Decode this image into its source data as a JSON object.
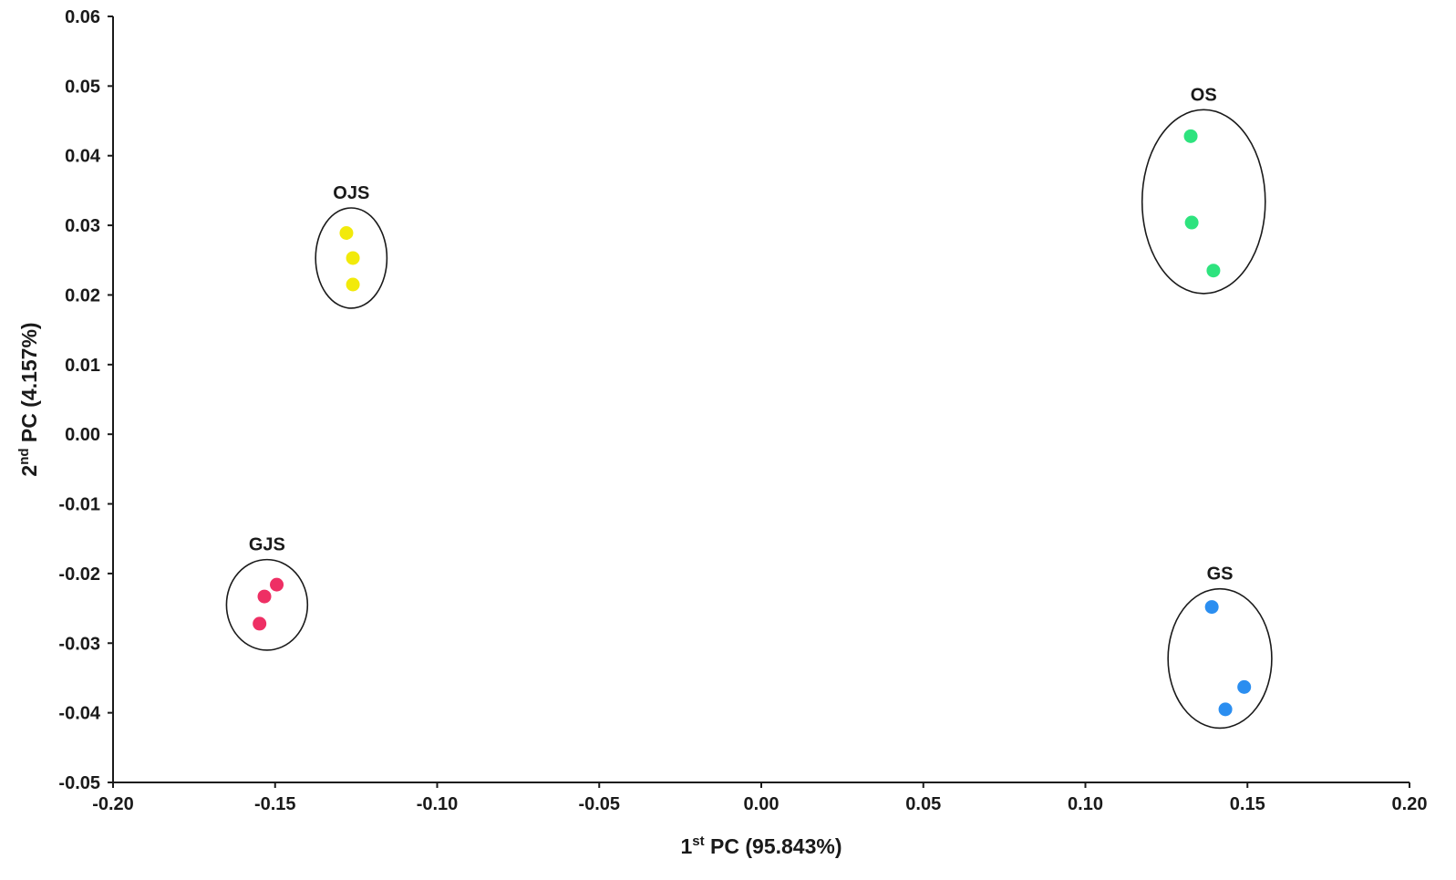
{
  "chart_data": {
    "type": "scatter",
    "title": "",
    "xlabel": {
      "prefix": "1",
      "sup": "st",
      "rest": " PC (95.843%)"
    },
    "ylabel": {
      "prefix": "2",
      "sup": "nd",
      "rest": " PC (4.157%)"
    },
    "xlim": [
      -0.2,
      0.2
    ],
    "ylim": [
      -0.05,
      0.06
    ],
    "xticks": [
      -0.2,
      -0.15,
      -0.1,
      -0.05,
      0.0,
      0.05,
      0.1,
      0.15,
      0.2
    ],
    "xtick_labels": [
      "-0.20",
      "-0.15",
      "-0.10",
      "-0.05",
      "0.00",
      "0.05",
      "0.10",
      "0.15",
      "0.20"
    ],
    "yticks": [
      0.06,
      0.05,
      0.04,
      0.03,
      0.02,
      0.01,
      0.0,
      -0.01,
      -0.02,
      -0.03,
      -0.04,
      -0.05
    ],
    "ytick_labels": [
      "0.06",
      "0.05",
      "0.04",
      "0.03",
      "0.02",
      "0.01",
      "0.00",
      "-0.01",
      "-0.02",
      "-0.03",
      "-0.04",
      "-0.05"
    ],
    "grid": false,
    "legend": "none",
    "series": [
      {
        "name": "OJS",
        "color": "#f2ea0a",
        "points": [
          {
            "x": -0.128,
            "y": 0.0289
          },
          {
            "x": -0.126,
            "y": 0.0253
          },
          {
            "x": -0.126,
            "y": 0.0215
          }
        ],
        "ellipse": {
          "cx": -0.1265,
          "cy": 0.0253,
          "rx": 0.011,
          "ry": 0.0072
        }
      },
      {
        "name": "OS",
        "color": "#2ee37e",
        "points": [
          {
            "x": 0.1325,
            "y": 0.0428
          },
          {
            "x": 0.1328,
            "y": 0.0304
          },
          {
            "x": 0.1395,
            "y": 0.0235
          }
        ],
        "ellipse": {
          "cx": 0.1365,
          "cy": 0.0334,
          "rx": 0.019,
          "ry": 0.0132
        }
      },
      {
        "name": "GJS",
        "color": "#ee2f64",
        "points": [
          {
            "x": -0.1495,
            "y": -0.0216
          },
          {
            "x": -0.1533,
            "y": -0.0233
          },
          {
            "x": -0.1548,
            "y": -0.0272
          }
        ],
        "ellipse": {
          "cx": -0.1525,
          "cy": -0.0245,
          "rx": 0.0125,
          "ry": 0.0065
        }
      },
      {
        "name": "GS",
        "color": "#2b8ef0",
        "points": [
          {
            "x": 0.139,
            "y": -0.0248
          },
          {
            "x": 0.149,
            "y": -0.0363
          },
          {
            "x": 0.1432,
            "y": -0.0395
          }
        ],
        "ellipse": {
          "cx": 0.1415,
          "cy": -0.0322,
          "rx": 0.016,
          "ry": 0.01
        }
      }
    ]
  }
}
